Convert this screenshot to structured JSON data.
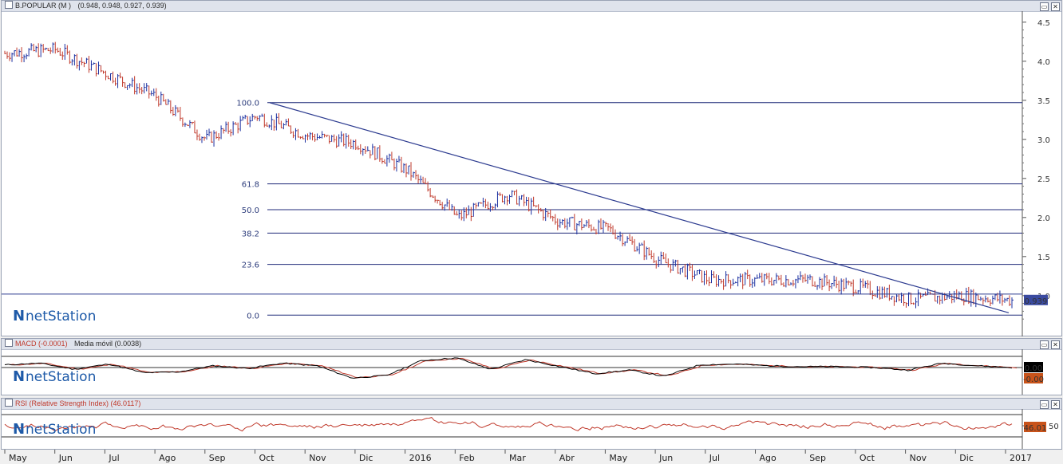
{
  "price_panel": {
    "title": "B.POPULAR (M )",
    "ohlc": "(0.948, 0.948, 0.927, 0.939)",
    "y_ticks": [
      "4.5",
      "4.0",
      "3.5",
      "3.0",
      "2.5",
      "2.0",
      "1.5",
      "1.0"
    ],
    "last_value": "0.939",
    "fib_levels": [
      "100.0",
      "61.8",
      "50.0",
      "38.2",
      "23.6",
      "0.0"
    ],
    "logo_mark": "N",
    "logo_text": "netStation"
  },
  "macd_panel": {
    "title": "MACD (-0.0001)",
    "ma_label": "Media móvil (0.0038)",
    "value_1": "0.00",
    "value_2": "-0.00",
    "logo_mark": "N",
    "logo_text": "netStation"
  },
  "rsi_panel": {
    "title": "RSI (Relative Strength Index) (46.0117)",
    "y_tick": "50",
    "last_value": "46.01",
    "logo_mark": "N",
    "logo_text": "netStation"
  },
  "window_buttons": {
    "restore": "▭",
    "close": "✕"
  },
  "x_axis": {
    "months": [
      "May",
      "Jun",
      "Jul",
      "Ago",
      "Sep",
      "Oct",
      "Nov",
      "Dic",
      "2016",
      "Feb",
      "Mar",
      "Abr",
      "May",
      "Jun",
      "Jul",
      "Ago",
      "Sep",
      "Oct",
      "Nov",
      "Dic",
      "2017"
    ]
  },
  "colors": {
    "up": "#1a2fa0",
    "down": "#c0392b",
    "fib_line": "#1f2a78",
    "trend_line": "#2b3a8f",
    "macd": "#000000",
    "signal": "#c0392b",
    "rsi": "#c0392b",
    "value_box": "#c8531a",
    "last_box": "#3a4aa0"
  },
  "chart_data": {
    "type": "line",
    "title": "B.POPULAR (M )",
    "x": [
      "May",
      "Jun",
      "Jul",
      "Ago",
      "Sep",
      "Oct",
      "Nov",
      "Dic",
      "2016",
      "Feb",
      "Mar",
      "Abr",
      "May",
      "Jun",
      "Jul",
      "Ago",
      "Sep",
      "Oct",
      "Nov",
      "Dic",
      "2017"
    ],
    "series": [
      {
        "name": "B.POPULAR",
        "values": [
          4.1,
          4.15,
          3.85,
          3.55,
          3.0,
          3.3,
          3.05,
          2.95,
          2.6,
          2.0,
          2.3,
          1.95,
          1.85,
          1.45,
          1.2,
          1.2,
          1.2,
          1.1,
          0.95,
          1.0,
          0.94
        ]
      }
    ],
    "ylim": [
      0.6,
      4.6
    ],
    "fibonacci": [
      {
        "label": "100.0",
        "value": 3.47
      },
      {
        "label": "61.8",
        "value": 2.43
      },
      {
        "label": "50.0",
        "value": 2.1
      },
      {
        "label": "38.2",
        "value": 1.8
      },
      {
        "label": "23.6",
        "value": 1.4
      },
      {
        "label": "0.0",
        "value": 0.75
      }
    ]
  }
}
